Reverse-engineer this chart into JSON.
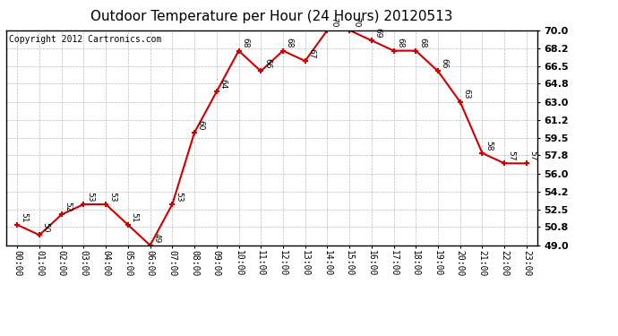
{
  "title": "Outdoor Temperature per Hour (24 Hours) 20120513",
  "copyright_text": "Copyright 2012 Cartronics.com",
  "hours": [
    "00:00",
    "01:00",
    "02:00",
    "03:00",
    "04:00",
    "05:00",
    "06:00",
    "07:00",
    "08:00",
    "09:00",
    "10:00",
    "11:00",
    "12:00",
    "13:00",
    "14:00",
    "15:00",
    "16:00",
    "17:00",
    "18:00",
    "19:00",
    "20:00",
    "21:00",
    "22:00",
    "23:00"
  ],
  "temps": [
    51,
    50,
    52,
    53,
    53,
    51,
    49,
    53,
    60,
    64,
    68,
    66,
    68,
    67,
    70,
    70,
    69,
    68,
    68,
    66,
    63,
    58,
    57,
    57
  ],
  "ylim_min": 49.0,
  "ylim_max": 70.0,
  "yticks": [
    49.0,
    50.8,
    52.5,
    54.2,
    56.0,
    57.8,
    59.5,
    61.2,
    63.0,
    64.8,
    66.5,
    68.2,
    70.0
  ],
  "line_color": "#cc0000",
  "marker_color": "#cc0000",
  "grid_color": "#bbbbbb",
  "bg_color": "#ffffff",
  "title_fontsize": 11,
  "annotation_fontsize": 6.5,
  "copyright_fontsize": 7
}
